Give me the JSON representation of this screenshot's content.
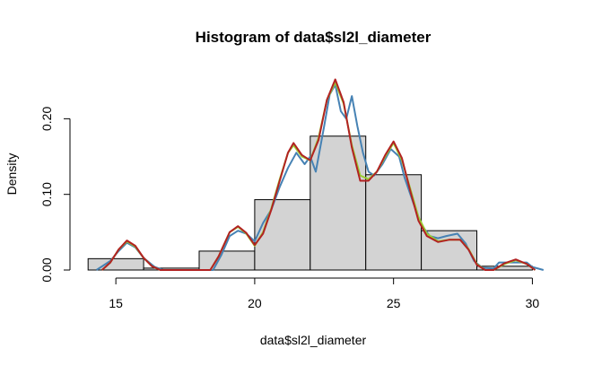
{
  "chart_data": {
    "type": "bar",
    "title": "Histogram of data$sl2l_diameter",
    "xlabel": "data$sl2l_diameter",
    "ylabel": "Density",
    "xlim": [
      13.8,
      30.6
    ],
    "ylim": [
      0,
      0.255
    ],
    "xticks": [
      15,
      20,
      25,
      30
    ],
    "yticks": [
      0.0,
      0.1,
      0.2
    ],
    "ytick_labels": [
      "0.00",
      "0.10",
      "0.20"
    ],
    "bar_fill": "#d3d3d3",
    "bins": [
      {
        "x0": 14,
        "x1": 16,
        "density": 0.015
      },
      {
        "x0": 16,
        "x1": 18,
        "density": 0.0025
      },
      {
        "x0": 18,
        "x1": 20,
        "density": 0.025
      },
      {
        "x0": 20,
        "x1": 22,
        "density": 0.093
      },
      {
        "x0": 22,
        "x1": 24,
        "density": 0.177
      },
      {
        "x0": 24,
        "x1": 26,
        "density": 0.126
      },
      {
        "x0": 26,
        "x1": 28,
        "density": 0.052
      },
      {
        "x0": 28,
        "x1": 30,
        "density": 0.005
      }
    ],
    "density_curves": [
      {
        "color": "#4682b4",
        "points": [
          [
            14.3,
            0
          ],
          [
            14.8,
            0.012
          ],
          [
            15.1,
            0.025
          ],
          [
            15.4,
            0.036
          ],
          [
            15.7,
            0.03
          ],
          [
            16.0,
            0.016
          ],
          [
            16.4,
            0.004
          ],
          [
            16.7,
            0
          ],
          [
            18.5,
            0
          ],
          [
            18.8,
            0.02
          ],
          [
            19.1,
            0.045
          ],
          [
            19.4,
            0.052
          ],
          [
            19.7,
            0.048
          ],
          [
            20.0,
            0.038
          ],
          [
            20.3,
            0.062
          ],
          [
            20.6,
            0.08
          ],
          [
            20.9,
            0.11
          ],
          [
            21.2,
            0.135
          ],
          [
            21.5,
            0.155
          ],
          [
            21.8,
            0.14
          ],
          [
            22.0,
            0.15
          ],
          [
            22.2,
            0.13
          ],
          [
            22.5,
            0.19
          ],
          [
            22.7,
            0.232
          ],
          [
            22.9,
            0.245
          ],
          [
            23.1,
            0.21
          ],
          [
            23.3,
            0.2
          ],
          [
            23.5,
            0.23
          ],
          [
            23.7,
            0.19
          ],
          [
            23.9,
            0.155
          ],
          [
            24.1,
            0.13
          ],
          [
            24.3,
            0.125
          ],
          [
            24.6,
            0.14
          ],
          [
            24.9,
            0.16
          ],
          [
            25.2,
            0.15
          ],
          [
            25.4,
            0.122
          ],
          [
            25.7,
            0.09
          ],
          [
            26.0,
            0.06
          ],
          [
            26.3,
            0.045
          ],
          [
            26.6,
            0.042
          ],
          [
            26.9,
            0.045
          ],
          [
            27.3,
            0.048
          ],
          [
            27.6,
            0.035
          ],
          [
            27.9,
            0.012
          ],
          [
            28.2,
            0.003
          ],
          [
            28.6,
            0.002
          ],
          [
            28.8,
            0.01
          ],
          [
            29.3,
            0.01
          ],
          [
            29.8,
            0.01
          ],
          [
            30.0,
            0.004
          ],
          [
            30.4,
            0
          ]
        ]
      },
      {
        "color": "#9acd32",
        "points": [
          [
            14.5,
            0
          ],
          [
            14.8,
            0.01
          ],
          [
            15.1,
            0.027
          ],
          [
            15.4,
            0.038
          ],
          [
            15.7,
            0.031
          ],
          [
            16.0,
            0.016
          ],
          [
            16.3,
            0.005
          ],
          [
            16.6,
            0
          ],
          [
            18.4,
            0
          ],
          [
            18.7,
            0.018
          ],
          [
            19.1,
            0.05
          ],
          [
            19.4,
            0.057
          ],
          [
            19.7,
            0.048
          ],
          [
            20.0,
            0.032
          ],
          [
            20.3,
            0.05
          ],
          [
            20.6,
            0.082
          ],
          [
            20.9,
            0.12
          ],
          [
            21.2,
            0.155
          ],
          [
            21.4,
            0.165
          ],
          [
            21.7,
            0.15
          ],
          [
            22.0,
            0.145
          ],
          [
            22.3,
            0.175
          ],
          [
            22.6,
            0.225
          ],
          [
            22.9,
            0.248
          ],
          [
            23.2,
            0.22
          ],
          [
            23.5,
            0.165
          ],
          [
            23.8,
            0.125
          ],
          [
            24.1,
            0.12
          ],
          [
            24.4,
            0.13
          ],
          [
            24.7,
            0.15
          ],
          [
            25.0,
            0.168
          ],
          [
            25.3,
            0.145
          ],
          [
            25.6,
            0.108
          ],
          [
            25.9,
            0.07
          ],
          [
            26.2,
            0.048
          ],
          [
            26.6,
            0.038
          ],
          [
            27.0,
            0.04
          ],
          [
            27.4,
            0.04
          ],
          [
            27.7,
            0.028
          ],
          [
            28.0,
            0.008
          ],
          [
            28.3,
            0
          ],
          [
            28.6,
            0
          ],
          [
            29.0,
            0.008
          ],
          [
            29.4,
            0.013
          ],
          [
            29.8,
            0.008
          ],
          [
            30.1,
            0
          ]
        ]
      },
      {
        "color": "#b22222",
        "points": [
          [
            14.5,
            0
          ],
          [
            14.8,
            0.01
          ],
          [
            15.1,
            0.027
          ],
          [
            15.4,
            0.039
          ],
          [
            15.7,
            0.032
          ],
          [
            16.0,
            0.016
          ],
          [
            16.3,
            0.005
          ],
          [
            16.6,
            0
          ],
          [
            18.4,
            0
          ],
          [
            18.7,
            0.018
          ],
          [
            19.1,
            0.05
          ],
          [
            19.4,
            0.058
          ],
          [
            19.7,
            0.049
          ],
          [
            20.0,
            0.033
          ],
          [
            20.3,
            0.048
          ],
          [
            20.6,
            0.08
          ],
          [
            20.9,
            0.118
          ],
          [
            21.2,
            0.155
          ],
          [
            21.4,
            0.168
          ],
          [
            21.7,
            0.152
          ],
          [
            22.0,
            0.145
          ],
          [
            22.3,
            0.172
          ],
          [
            22.6,
            0.225
          ],
          [
            22.9,
            0.252
          ],
          [
            23.2,
            0.222
          ],
          [
            23.5,
            0.162
          ],
          [
            23.8,
            0.118
          ],
          [
            24.1,
            0.118
          ],
          [
            24.4,
            0.13
          ],
          [
            24.7,
            0.152
          ],
          [
            25.0,
            0.17
          ],
          [
            25.3,
            0.148
          ],
          [
            25.6,
            0.105
          ],
          [
            25.9,
            0.065
          ],
          [
            26.2,
            0.045
          ],
          [
            26.6,
            0.037
          ],
          [
            27.0,
            0.04
          ],
          [
            27.4,
            0.04
          ],
          [
            27.7,
            0.027
          ],
          [
            28.0,
            0.007
          ],
          [
            28.3,
            0
          ],
          [
            28.6,
            0
          ],
          [
            29.0,
            0.009
          ],
          [
            29.4,
            0.014
          ],
          [
            29.8,
            0.008
          ],
          [
            30.1,
            0
          ]
        ]
      }
    ],
    "grid": false,
    "legend": "none"
  }
}
